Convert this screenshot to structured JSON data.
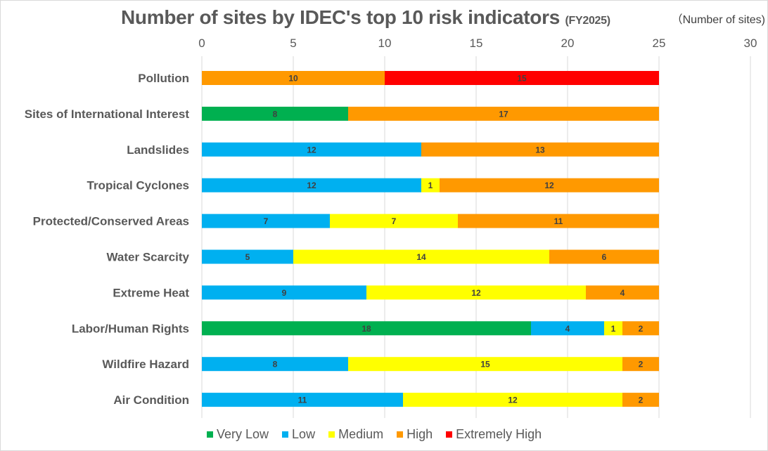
{
  "chart_data": {
    "type": "bar",
    "orientation": "horizontal",
    "stacked": true,
    "title": "Number of sites by IDEC's top 10 risk indicators",
    "subtitle": "(FY2025)",
    "unit_label": "（Number of sites)",
    "xlabel": "",
    "ylabel": "",
    "xlim": [
      0,
      30
    ],
    "xticks": [
      0,
      5,
      10,
      15,
      20,
      25,
      30
    ],
    "grid": true,
    "legend_position": "bottom",
    "categories": [
      "Pollution",
      "Sites of International Interest",
      "Landslides",
      "Tropical Cyclones",
      "Protected/Conserved Areas",
      "Water Scarcity",
      "Extreme Heat",
      "Labor/Human Rights",
      "Wildfire Hazard",
      "Air Condition"
    ],
    "series": [
      {
        "name": "Very Low",
        "color": "#00b050",
        "values": [
          0,
          8,
          0,
          0,
          0,
          0,
          0,
          18,
          0,
          0
        ]
      },
      {
        "name": "Low",
        "color": "#00b0f0",
        "values": [
          0,
          0,
          12,
          12,
          7,
          5,
          9,
          4,
          8,
          11
        ]
      },
      {
        "name": "Medium",
        "color": "#ffff00",
        "values": [
          0,
          0,
          0,
          1,
          7,
          14,
          12,
          1,
          15,
          12
        ]
      },
      {
        "name": "High",
        "color": "#ff9900",
        "values": [
          10,
          17,
          13,
          12,
          11,
          6,
          4,
          2,
          2,
          2
        ]
      },
      {
        "name": "Extremely High",
        "color": "#ff0000",
        "values": [
          15,
          0,
          0,
          0,
          0,
          0,
          0,
          0,
          0,
          0
        ]
      }
    ]
  }
}
